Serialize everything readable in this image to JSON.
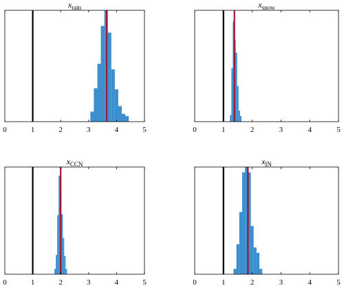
{
  "chart_data": [
    {
      "type": "bar",
      "panel": "x_rain",
      "title": {
        "base": "x",
        "subscript": "rain"
      },
      "xlim": [
        0,
        5
      ],
      "xticks": [
        "0",
        "1",
        "2",
        "3",
        "4",
        "5"
      ],
      "ylim": [
        0,
        1
      ],
      "yticks": [],
      "bin_width": 0.125,
      "bars": [
        {
          "x": 3.125,
          "y": 0.09
        },
        {
          "x": 3.25,
          "y": 0.3
        },
        {
          "x": 3.375,
          "y": 0.52
        },
        {
          "x": 3.5,
          "y": 0.86
        },
        {
          "x": 3.625,
          "y": 1.0
        },
        {
          "x": 3.75,
          "y": 0.8
        },
        {
          "x": 3.875,
          "y": 0.47
        },
        {
          "x": 4.0,
          "y": 0.29
        },
        {
          "x": 4.125,
          "y": 0.14
        },
        {
          "x": 4.25,
          "y": 0.07
        },
        {
          "x": 4.375,
          "y": 0.05
        }
      ],
      "reference_line": {
        "x": 1.0,
        "color": "#000000"
      },
      "estimate_line": {
        "x": 3.65,
        "color": "#a2142f"
      },
      "bar_color": "#3b8fcf"
    },
    {
      "type": "bar",
      "panel": "x_snow",
      "title": {
        "base": "x",
        "subscript": "snow"
      },
      "xlim": [
        0,
        5
      ],
      "xticks": [
        "0",
        "1",
        "2",
        "3",
        "4",
        "5"
      ],
      "ylim": [
        0,
        1
      ],
      "yticks": [],
      "bin_width": 0.05,
      "bars": [
        {
          "x": 1.25,
          "y": 0.06
        },
        {
          "x": 1.3,
          "y": 0.48
        },
        {
          "x": 1.35,
          "y": 0.9
        },
        {
          "x": 1.4,
          "y": 0.73
        },
        {
          "x": 1.45,
          "y": 0.62
        },
        {
          "x": 1.5,
          "y": 0.32
        },
        {
          "x": 1.55,
          "y": 0.1
        },
        {
          "x": 1.6,
          "y": 0.05
        }
      ],
      "reference_line": {
        "x": 1.0,
        "color": "#000000"
      },
      "estimate_line": {
        "x": 1.38,
        "color": "#a2142f"
      },
      "bar_color": "#3b8fcf"
    },
    {
      "type": "bar",
      "panel": "x_CCN",
      "title": {
        "base": "x",
        "subscript": "CCN"
      },
      "xlim": [
        0,
        5
      ],
      "xticks": [
        "0",
        "1",
        "2",
        "3",
        "4",
        "5"
      ],
      "ylim": [
        0,
        1
      ],
      "yticks": [],
      "bin_width": 0.05,
      "bars": [
        {
          "x": 1.8,
          "y": 0.05
        },
        {
          "x": 1.85,
          "y": 0.18
        },
        {
          "x": 1.9,
          "y": 0.55
        },
        {
          "x": 1.95,
          "y": 0.92
        },
        {
          "x": 2.0,
          "y": 0.82
        },
        {
          "x": 2.05,
          "y": 0.56
        },
        {
          "x": 2.1,
          "y": 0.34
        },
        {
          "x": 2.15,
          "y": 0.17
        },
        {
          "x": 2.2,
          "y": 0.05
        }
      ],
      "reference_line": {
        "x": 1.0,
        "color": "#000000"
      },
      "estimate_line": {
        "x": 2.0,
        "color": "#a2142f"
      },
      "bar_color": "#3b8fcf"
    },
    {
      "type": "bar",
      "panel": "x_IN",
      "title": {
        "base": "x",
        "subscript": "IN"
      },
      "xlim": [
        0,
        5
      ],
      "xticks": [
        "0",
        "1",
        "2",
        "3",
        "4",
        "5"
      ],
      "ylim": [
        0,
        1
      ],
      "yticks": [],
      "bin_width": 0.1,
      "bars": [
        {
          "x": 1.4,
          "y": 0.05
        },
        {
          "x": 1.5,
          "y": 0.28
        },
        {
          "x": 1.6,
          "y": 0.58
        },
        {
          "x": 1.7,
          "y": 0.95
        },
        {
          "x": 1.8,
          "y": 1.0
        },
        {
          "x": 1.9,
          "y": 0.95
        },
        {
          "x": 2.0,
          "y": 0.45
        },
        {
          "x": 2.1,
          "y": 0.25
        },
        {
          "x": 2.2,
          "y": 0.2
        },
        {
          "x": 2.3,
          "y": 0.05
        }
      ],
      "reference_line": {
        "x": 1.0,
        "color": "#000000"
      },
      "estimate_line": {
        "x": 1.85,
        "color": "#a2142f"
      },
      "bar_color": "#3b8fcf"
    }
  ]
}
